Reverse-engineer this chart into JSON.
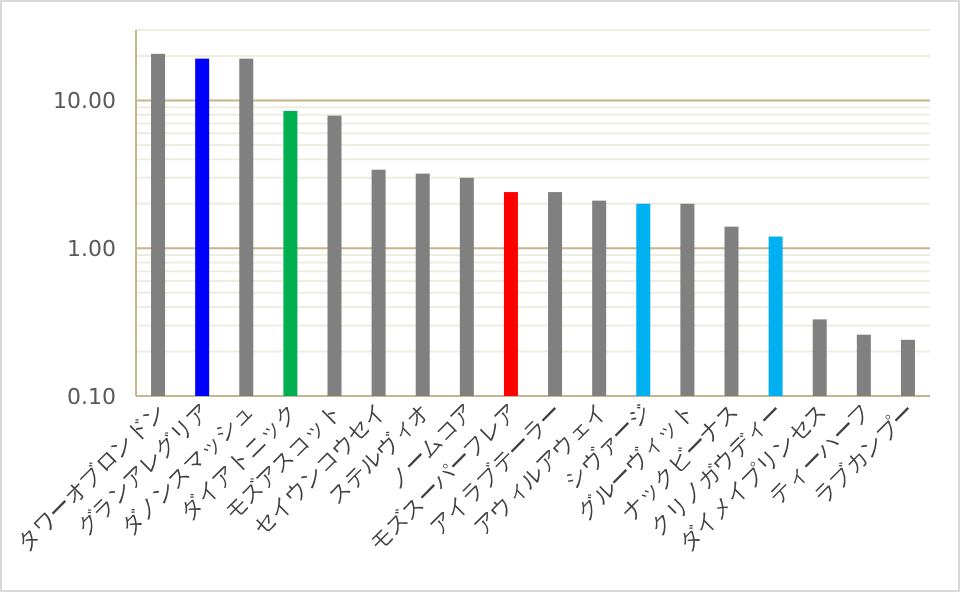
{
  "chart_data": {
    "type": "bar",
    "log": "y",
    "grid": "y",
    "categories": [
      "タワーオブロンドン",
      "グランアレグリア",
      "ダノンスマッシュ",
      "ダイアトニック",
      "モズアスコット",
      "セイウンコウセイ",
      "ステルヴィオ",
      "ノームコア",
      "モズスーパーフレア",
      "アイラブテーラー",
      "アウィルアウェイ",
      "シヴァージ",
      "グルーヴィット",
      "ナックビーナス",
      "クリノガウディー",
      "ダイメイプリンセス",
      "ティーハーフ",
      "ラブカンプー"
    ],
    "values": [
      20.7,
      19.2,
      19.2,
      8.5,
      7.9,
      3.4,
      3.2,
      3.0,
      2.4,
      2.4,
      2.1,
      2.0,
      2.0,
      1.4,
      1.2,
      0.33,
      0.26,
      0.24
    ],
    "colors": [
      "#808080",
      "#0000ff",
      "#808080",
      "#00b050",
      "#808080",
      "#808080",
      "#808080",
      "#808080",
      "#ff0000",
      "#808080",
      "#808080",
      "#00b0f0",
      "#808080",
      "#808080",
      "#00b0f0",
      "#808080",
      "#808080",
      "#808080"
    ],
    "ylim": [
      0.1,
      30
    ],
    "yticks": [
      {
        "value": 0.1,
        "label": "0.10"
      },
      {
        "value": 0.2,
        "label": null
      },
      {
        "value": 0.3,
        "label": null
      },
      {
        "value": 0.4,
        "label": null
      },
      {
        "value": 0.5,
        "label": null
      },
      {
        "value": 0.6,
        "label": null
      },
      {
        "value": 0.7,
        "label": null
      },
      {
        "value": 0.8,
        "label": null
      },
      {
        "value": 0.9,
        "label": null
      },
      {
        "value": 1,
        "label": "1.00"
      },
      {
        "value": 2,
        "label": null
      },
      {
        "value": 3,
        "label": null
      },
      {
        "value": 4,
        "label": null
      },
      {
        "value": 5,
        "label": null
      },
      {
        "value": 6,
        "label": null
      },
      {
        "value": 7,
        "label": null
      },
      {
        "value": 8,
        "label": null
      },
      {
        "value": 9,
        "label": null
      },
      {
        "value": 10,
        "label": "10.00"
      },
      {
        "value": 20,
        "label": null
      },
      {
        "value": 30,
        "label": null
      }
    ]
  }
}
